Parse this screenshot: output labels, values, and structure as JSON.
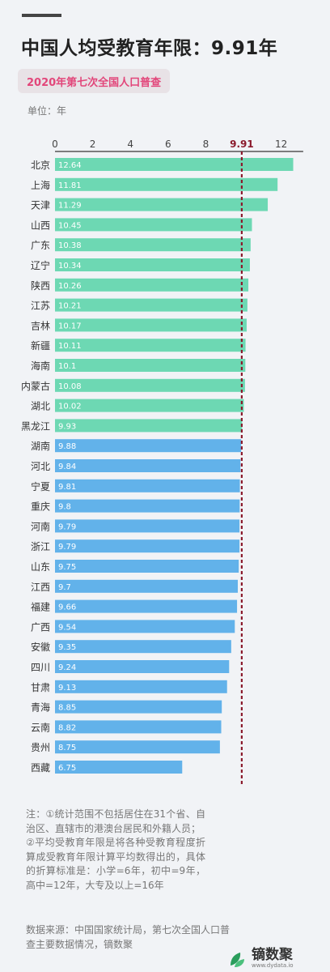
{
  "title": "中国人均受教育年限：9.91年",
  "subtitle": "2020年第七次全国人口普查",
  "unit_label": "单位：年",
  "notes": [
    "注：①统计范围不包括居住在31个省、自治区、直辖市的港澳台居民和外籍人员；",
    "②平均受教育年限是将各种受教育程度折算成受教育年限计算平均数得出的，具体的折算标准是：小学=6年，初中=9年，高中=12年，大专及以上=16年"
  ],
  "source": "数据来源：中国国家统计局，第七次全国人口普查主要数据情况，镝数聚",
  "brand": {
    "name": "镝数聚",
    "url": "www.dydata.io"
  },
  "colors": {
    "above_average": "#6dd8b3",
    "below_average": "#62b2ea",
    "reference_line": "#8b1a2c",
    "title": "#222222",
    "subtitle": "#e2467a"
  },
  "chart_data": {
    "type": "bar",
    "orientation": "horizontal",
    "categories": [
      "北京",
      "上海",
      "天津",
      "山西",
      "广东",
      "辽宁",
      "陕西",
      "江苏",
      "吉林",
      "新疆",
      "海南",
      "内蒙古",
      "湖北",
      "黑龙江",
      "湖南",
      "河北",
      "宁夏",
      "重庆",
      "河南",
      "浙江",
      "山东",
      "江西",
      "福建",
      "广西",
      "安徽",
      "四川",
      "甘肃",
      "青海",
      "云南",
      "贵州",
      "西藏"
    ],
    "values": [
      "12.64",
      "11.81",
      "11.29",
      "10.45",
      "10.38",
      "10.34",
      "10.26",
      "10.21",
      "10.17",
      "10.11",
      "10.1",
      "10.08",
      "10.02",
      "9.93",
      "9.88",
      "9.84",
      "9.81",
      "9.8",
      "9.79",
      "9.79",
      "9.75",
      "9.7",
      "9.66",
      "9.54",
      "9.35",
      "9.24",
      "9.13",
      "8.85",
      "8.82",
      "8.75",
      "6.75"
    ],
    "xlim": [
      0,
      13
    ],
    "xticks": [
      0,
      2,
      4,
      6,
      8,
      12
    ],
    "reference_line": {
      "value": 9.91,
      "label": "9.91",
      "style": "dashed"
    },
    "grid": false
  }
}
